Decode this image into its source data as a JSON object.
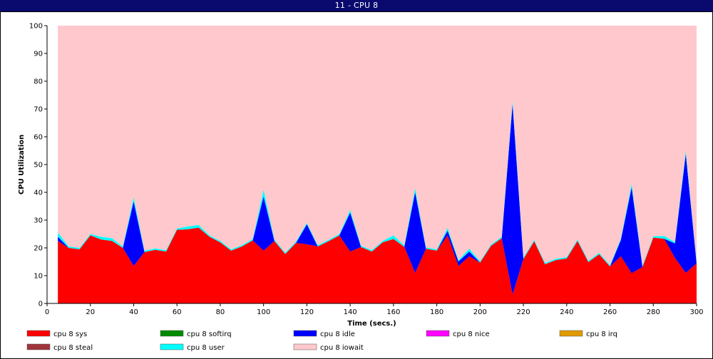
{
  "window": {
    "title": "11 - CPU 8"
  },
  "chart_data": {
    "type": "area",
    "stacked": true,
    "title": "",
    "xlabel": "Time (secs.)",
    "ylabel": "CPU Utilization",
    "xlim": [
      0,
      300
    ],
    "ylim": [
      0,
      100
    ],
    "x_ticks": [
      0,
      20,
      40,
      60,
      80,
      100,
      120,
      140,
      160,
      180,
      200,
      220,
      240,
      260,
      280,
      300
    ],
    "y_ticks": [
      0,
      10,
      20,
      30,
      40,
      50,
      60,
      70,
      80,
      90,
      100
    ],
    "grid": false,
    "legend_position": "bottom",
    "x": [
      5,
      10,
      15,
      20,
      25,
      30,
      35,
      40,
      45,
      50,
      55,
      60,
      65,
      70,
      75,
      80,
      85,
      90,
      95,
      100,
      105,
      110,
      115,
      120,
      125,
      130,
      135,
      140,
      145,
      150,
      155,
      160,
      165,
      170,
      175,
      180,
      185,
      190,
      195,
      200,
      205,
      210,
      215,
      220,
      225,
      230,
      235,
      240,
      245,
      250,
      255,
      260,
      265,
      270,
      275,
      280,
      285,
      290,
      295,
      300
    ],
    "series": [
      {
        "name": "cpu 8 sys",
        "color": "#ff0000",
        "values": [
          22.5,
          20,
          19.5,
          24.5,
          23,
          22.5,
          20,
          13.5,
          18.5,
          19.3,
          18.7,
          26.5,
          26.7,
          27.3,
          24,
          22,
          19,
          20.5,
          22.7,
          19,
          22.5,
          17.8,
          21.8,
          21.3,
          20.5,
          22.4,
          24.5,
          18.7,
          20.3,
          18.7,
          22,
          23.2,
          20.4,
          11,
          19.7,
          19,
          24.5,
          13.5,
          17,
          14.7,
          20.7,
          23.5,
          3.2,
          16,
          22.4,
          14.1,
          15.6,
          16.2,
          22.5,
          14.9,
          17.7,
          13.3,
          17,
          10.9,
          13.1,
          23.7,
          23.3,
          16.4,
          11,
          14.5
        ]
      },
      {
        "name": "cpu 8 softirq",
        "color": "#008b00",
        "values": [
          0,
          0,
          0,
          0,
          0,
          0,
          0,
          0,
          0,
          0,
          0,
          0,
          0,
          0,
          0,
          0,
          0,
          0,
          0,
          0,
          0,
          0,
          0,
          0,
          0,
          0,
          0,
          0,
          0,
          0,
          0,
          0,
          0,
          0,
          0,
          0,
          0,
          0,
          0,
          0,
          0,
          0,
          0,
          0,
          0,
          0,
          0,
          0,
          0,
          0,
          0,
          0,
          0,
          0,
          0,
          0,
          0,
          0,
          0,
          0
        ]
      },
      {
        "name": "cpu 8 idle",
        "color": "#0000ff",
        "values": [
          1.5,
          0,
          0,
          0,
          0,
          0,
          0,
          23.2,
          0,
          0,
          0,
          0,
          0,
          0,
          0,
          0,
          0,
          0,
          0,
          19.5,
          0,
          0,
          0,
          7.2,
          0,
          0,
          0,
          14,
          0,
          0,
          0,
          0,
          0,
          29,
          0,
          0,
          1.7,
          1.6,
          1.7,
          0,
          0,
          0,
          68.5,
          0,
          0,
          0,
          0,
          0,
          0,
          0,
          0,
          0,
          5.8,
          30.9,
          0,
          0,
          0,
          5.2,
          42.8,
          0
        ]
      },
      {
        "name": "cpu 8 nice",
        "color": "#ff00ff",
        "values": [
          0,
          0,
          0,
          0,
          0,
          0,
          0,
          0,
          0,
          0,
          0,
          0,
          0,
          0,
          0,
          0,
          0,
          0,
          0,
          0,
          0,
          0,
          0,
          0,
          0,
          0,
          0,
          0,
          0,
          0,
          0,
          0,
          0,
          0,
          0,
          0,
          0,
          0,
          0,
          0,
          0,
          0,
          0,
          0,
          0,
          0,
          0,
          0,
          0,
          0,
          0,
          0,
          0,
          0,
          0,
          0,
          0,
          0,
          0,
          0
        ]
      },
      {
        "name": "cpu 8 irq",
        "color": "#e09a00",
        "values": [
          0,
          0,
          0,
          0,
          0,
          0,
          0,
          0,
          0,
          0,
          0,
          0,
          0,
          0,
          0,
          0,
          0,
          0,
          0,
          0,
          0,
          0,
          0,
          0,
          0,
          0,
          0,
          0,
          0,
          0,
          0,
          0,
          0,
          0,
          0,
          0,
          0,
          0,
          0,
          0,
          0,
          0,
          0,
          0,
          0,
          0,
          0,
          0,
          0,
          0,
          0,
          0,
          0,
          0,
          0,
          0,
          0,
          0,
          0,
          0
        ]
      },
      {
        "name": "cpu 8 steal",
        "color": "#a0343c",
        "values": [
          0,
          0,
          0,
          0,
          0,
          0,
          0,
          0,
          0,
          0,
          0,
          0,
          0,
          0,
          0,
          0,
          0,
          0,
          0,
          0,
          0,
          0,
          0,
          0,
          0,
          0,
          0,
          0,
          0,
          0,
          0,
          0,
          0,
          0,
          0,
          0,
          0,
          0,
          0,
          0,
          0,
          0,
          0,
          0,
          0,
          0,
          0,
          0,
          0,
          0,
          0,
          0,
          0,
          0,
          0,
          0,
          0,
          0,
          0,
          0
        ]
      },
      {
        "name": "cpu 8 user",
        "color": "#00ffff",
        "values": [
          1.5,
          0.5,
          0.5,
          0.5,
          1,
          1,
          0.5,
          1.5,
          0.5,
          0.5,
          0.5,
          0.5,
          1,
          1,
          0.5,
          0.5,
          0.5,
          0.5,
          0.5,
          2.5,
          0.5,
          0.5,
          0.5,
          0.5,
          0.5,
          0.5,
          0.5,
          1,
          0.5,
          0.5,
          0.5,
          1.3,
          0.5,
          1.5,
          0.5,
          0.5,
          1,
          0.5,
          1,
          0.5,
          0.5,
          0.5,
          1.3,
          0.5,
          0.5,
          0.5,
          0.5,
          0.5,
          0.5,
          0.5,
          0.5,
          0.5,
          0.5,
          1.3,
          0.5,
          0.5,
          1,
          0.5,
          1.2,
          0.5
        ]
      },
      {
        "name": "cpu 8 iowait",
        "color": "#ffc8cc",
        "values": [
          74.5,
          79.5,
          80,
          75,
          76,
          76.5,
          79.5,
          61.8,
          81,
          80.2,
          80.8,
          73,
          72.3,
          71.7,
          75.5,
          77.5,
          80.5,
          79,
          76.8,
          59,
          77,
          81.7,
          77.7,
          71,
          79,
          77.1,
          75,
          66.3,
          79.2,
          80.8,
          77.5,
          75.5,
          79.1,
          58.5,
          79.8,
          80.5,
          72.8,
          84.4,
          80.3,
          84.8,
          78.8,
          76,
          27,
          83.5,
          77.1,
          85.4,
          83.9,
          83.3,
          77,
          84.6,
          81.8,
          86.2,
          76.7,
          56.9,
          86.4,
          75.8,
          75.7,
          77.9,
          45,
          85
        ]
      }
    ]
  }
}
